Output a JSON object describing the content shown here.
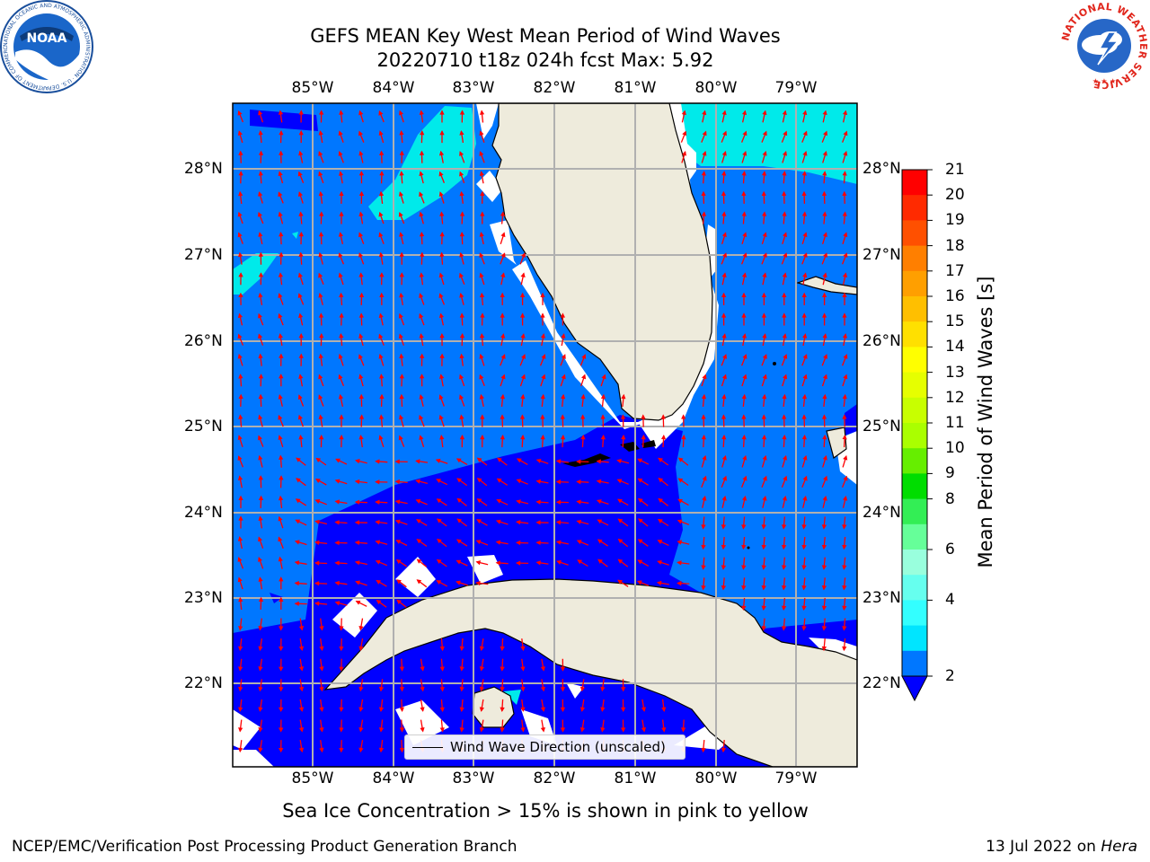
{
  "header": {
    "title_line1": "GEFS MEAN Key West Mean Period of Wind Waves",
    "title_line2": "20220710 t18z 024h fcst    Max: 5.92"
  },
  "map": {
    "longitude_labels": [
      "85°W",
      "84°W",
      "83°W",
      "82°W",
      "81°W",
      "80°W",
      "79°W"
    ],
    "latitude_labels": [
      "28°N",
      "27°N",
      "26°N",
      "25°N",
      "24°N",
      "23°N",
      "22°N"
    ],
    "legend_label": "Wind Wave Direction (unscaled)",
    "arrow_color": "#ff0000",
    "land_color": "#eeebdc",
    "grid_color": "#b0b0b0"
  },
  "colorbar": {
    "title": "Mean Period of Wind Waves [s]",
    "ticks": [
      "21",
      "20",
      "19",
      "18",
      "17",
      "16",
      "15",
      "14",
      "13",
      "12",
      "11",
      "10",
      "9",
      "8",
      "6",
      "4",
      "2"
    ],
    "colors": [
      "#ff0000",
      "#ff2a00",
      "#ff5000",
      "#ff7f00",
      "#ff9f00",
      "#ffbf00",
      "#ffe000",
      "#ffff00",
      "#e6ff00",
      "#c8ff00",
      "#aaff00",
      "#66ee00",
      "#00dd00",
      "#33ee55",
      "#66ff99",
      "#99ffdd",
      "#66ffee",
      "#33ffff",
      "#00e5ff",
      "#0077ff"
    ]
  },
  "sub_note": "Sea Ice Concentration > 15% is shown in pink to yellow",
  "footer": {
    "left": "NCEP/EMC/Verification Post Processing Product Generation Branch",
    "date": "13 Jul 2022 on ",
    "host": "Hera"
  },
  "logos": {
    "noaa": "NOAA",
    "noaa_ring": "NATIONAL OCEANIC AND ATMOSPHERIC ADMINISTRATION · U.S. DEPARTMENT OF COMMERCE",
    "nws_ring": "NATIONAL WEATHER SERVICE"
  }
}
